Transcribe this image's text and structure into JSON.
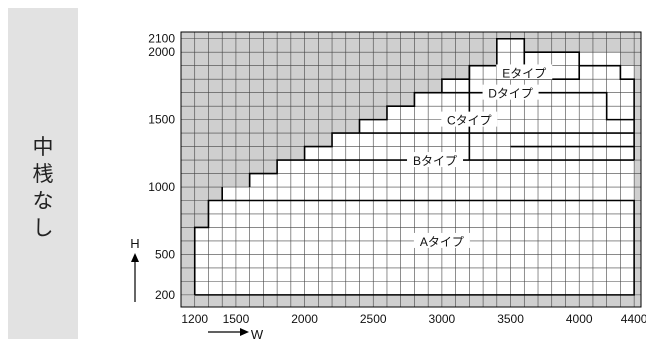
{
  "side_label": [
    "中",
    "桟",
    "な",
    "し"
  ],
  "colors": {
    "shaded": "#cfcfcf",
    "white": "#ffffff",
    "grid": "#444444",
    "line": "#000000",
    "panel": "#e2e2e2"
  },
  "chart_data": {
    "type": "table",
    "title": "",
    "xlabel": "W",
    "ylabel": "H",
    "x_ticks": [
      1200,
      1500,
      2000,
      2500,
      3000,
      3500,
      4000,
      4400
    ],
    "y_ticks": [
      200,
      500,
      1000,
      1500,
      2000,
      2100
    ],
    "xlim": [
      1100,
      4450
    ],
    "ylim": [
      110,
      2150
    ],
    "grid_step": {
      "w": 100,
      "h": 100
    },
    "grid": true,
    "available_region": [
      [
        1200,
        4400,
        200,
        700
      ],
      [
        1300,
        4400,
        700,
        900
      ],
      [
        1400,
        4400,
        900,
        1000
      ],
      [
        1600,
        4400,
        1000,
        1100
      ],
      [
        1800,
        4400,
        1100,
        1200
      ],
      [
        2000,
        4400,
        1200,
        1300
      ],
      [
        2200,
        4400,
        1300,
        1400
      ],
      [
        2400,
        4400,
        1400,
        1500
      ],
      [
        2600,
        4400,
        1500,
        1600
      ],
      [
        2800,
        4400,
        1600,
        1700
      ],
      [
        3000,
        4400,
        1700,
        1800
      ],
      [
        3200,
        4400,
        1800,
        1900
      ],
      [
        3400,
        4300,
        1900,
        2000
      ],
      [
        3400,
        3600,
        2000,
        2100
      ]
    ],
    "types": [
      {
        "label": "Aタイプ",
        "w": 3000,
        "h": 600
      },
      {
        "label": "Bタイプ",
        "w": 2950,
        "h": 1200
      },
      {
        "label": "Cタイプ",
        "w": 3200,
        "h": 1500
      },
      {
        "label": "Dタイプ",
        "w": 3500,
        "h": 1700
      },
      {
        "label": "Eタイプ",
        "w": 3600,
        "h": 1850
      }
    ]
  }
}
